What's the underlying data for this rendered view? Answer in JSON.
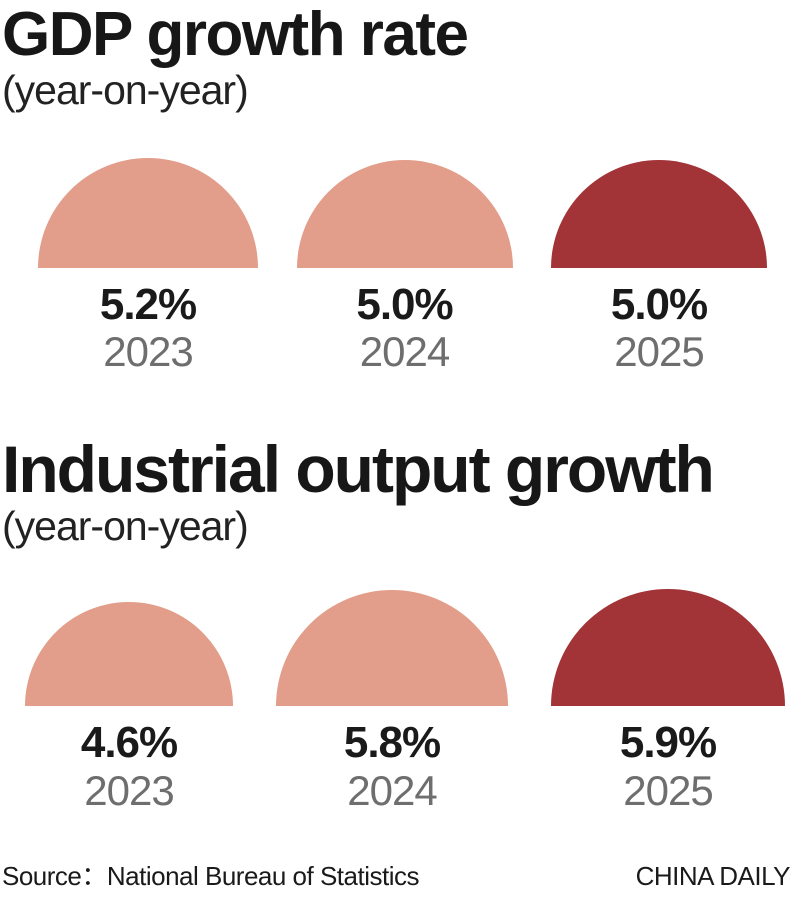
{
  "charts": [
    {
      "title": "GDP growth rate",
      "subtitle": "(year-on-year)",
      "points": [
        {
          "year": "2023",
          "label": "5.2%",
          "color": "#e29e8a"
        },
        {
          "year": "2024",
          "label": "5.0%",
          "color": "#e29e8a"
        },
        {
          "year": "2025",
          "label": "5.0%",
          "color": "#a23337"
        }
      ]
    },
    {
      "title": "Industrial output growth",
      "subtitle": "(year-on-year)",
      "points": [
        {
          "year": "2023",
          "label": "4.6%",
          "color": "#e29e8a"
        },
        {
          "year": "2024",
          "label": "5.8%",
          "color": "#e29e8a"
        },
        {
          "year": "2025",
          "label": "5.9%",
          "color": "#a23337"
        }
      ]
    }
  ],
  "footer": {
    "source": "Source：National Bureau of Statistics",
    "credit": "CHINA DAILY"
  },
  "colors": {
    "salmon": "#e29e8a",
    "dark_red": "#a23337",
    "year_gray": "#6e6e6e",
    "text_black": "#1a1a1a",
    "background": "#ffffff"
  },
  "chart_data": [
    {
      "type": "bar",
      "shape": "semicircle-area",
      "title": "GDP growth rate",
      "subtitle": "(year-on-year)",
      "categories": [
        "2023",
        "2024",
        "2025"
      ],
      "values": [
        5.2,
        5.0,
        5.0
      ],
      "unit": "%",
      "highlight_category": "2025",
      "legend": "none",
      "grid": false
    },
    {
      "type": "bar",
      "shape": "semicircle-area",
      "title": "Industrial output growth",
      "subtitle": "(year-on-year)",
      "categories": [
        "2023",
        "2024",
        "2025"
      ],
      "values": [
        4.6,
        5.8,
        5.9
      ],
      "unit": "%",
      "highlight_category": "2025",
      "legend": "none",
      "grid": false
    }
  ]
}
